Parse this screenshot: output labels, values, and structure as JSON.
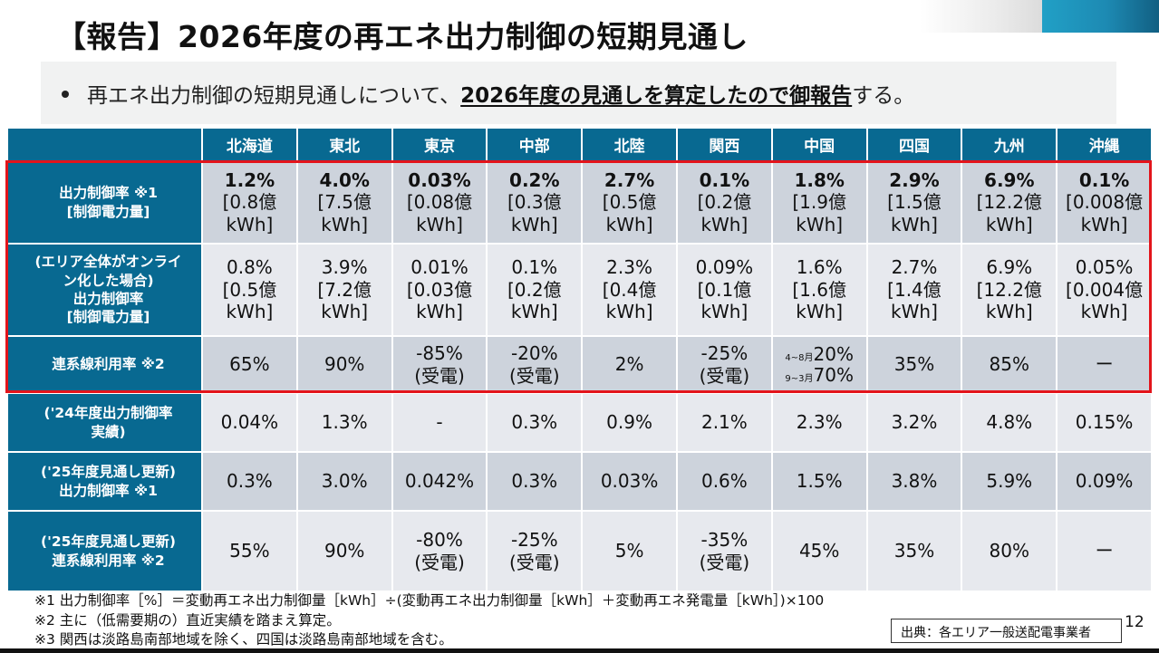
{
  "title": "【報告】2026年度の再エネ出力制御の短期見通し",
  "lead": {
    "prefix": "再エネ出力制御の短期見通しについて、",
    "emphasis": "2026年度の見通しを算定したので御報告",
    "suffix": "する。"
  },
  "table": {
    "columns": [
      "北海道",
      "東北",
      "東京",
      "中部",
      "北陸",
      "関西",
      "中国",
      "四国",
      "九州",
      "沖縄"
    ],
    "rows": [
      {
        "label_lines": [
          "出力制御率 ※1",
          "[制御電力量]"
        ],
        "cells": [
          {
            "main": "1.2%",
            "sub1": "[0.8億",
            "sub2": "kWh]"
          },
          {
            "main": "4.0%",
            "sub1": "[7.5億",
            "sub2": "kWh]"
          },
          {
            "main": "0.03%",
            "sub1": "[0.08億",
            "sub2": "kWh]"
          },
          {
            "main": "0.2%",
            "sub1": "[0.3億",
            "sub2": "kWh]"
          },
          {
            "main": "2.7%",
            "sub1": "[0.5億",
            "sub2": "kWh]"
          },
          {
            "main": "0.1%",
            "sub1": "[0.2億",
            "sub2": "kWh]"
          },
          {
            "main": "1.8%",
            "sub1": "[1.9億",
            "sub2": "kWh]"
          },
          {
            "main": "2.9%",
            "sub1": "[1.5億",
            "sub2": "kWh]"
          },
          {
            "main": "6.9%",
            "sub1": "[12.2億",
            "sub2": "kWh]"
          },
          {
            "main": "0.1%",
            "sub1": "[0.008億",
            "sub2": "kWh]"
          }
        ]
      },
      {
        "label_lines": [
          "(エリア全体がオンライ",
          "ン化した場合)",
          "出力制御率",
          "[制御電力量]"
        ],
        "cells": [
          {
            "main": "0.8%",
            "sub1": "[0.5億",
            "sub2": "kWh]"
          },
          {
            "main": "3.9%",
            "sub1": "[7.2億",
            "sub2": "kWh]"
          },
          {
            "main": "0.01%",
            "sub1": "[0.03億",
            "sub2": "kWh]"
          },
          {
            "main": "0.1%",
            "sub1": "[0.2億",
            "sub2": "kWh]"
          },
          {
            "main": "2.3%",
            "sub1": "[0.4億",
            "sub2": "kWh]"
          },
          {
            "main": "0.09%",
            "sub1": "[0.1億",
            "sub2": "kWh]"
          },
          {
            "main": "1.6%",
            "sub1": "[1.6億",
            "sub2": "kWh]"
          },
          {
            "main": "2.7%",
            "sub1": "[1.4億",
            "sub2": "kWh]"
          },
          {
            "main": "6.9%",
            "sub1": "[12.2億",
            "sub2": "kWh]"
          },
          {
            "main": "0.05%",
            "sub1": "[0.004億",
            "sub2": "kWh]"
          }
        ]
      },
      {
        "label_lines": [
          "連系線利用率 ※2"
        ],
        "cells": [
          {
            "main": "65%"
          },
          {
            "main": "90%"
          },
          {
            "main": "-85%",
            "sub1": "(受電)"
          },
          {
            "main": "-20%",
            "sub1": "(受電)"
          },
          {
            "main": "2%"
          },
          {
            "main": "-25%",
            "sub1": "(受電)"
          },
          {
            "period1": "4~8月",
            "value1": "20%",
            "period2": "9~3月",
            "value2": "70%"
          },
          {
            "main": "35%"
          },
          {
            "main": "85%"
          },
          {
            "main": "ー"
          }
        ]
      },
      {
        "label_lines": [
          "('24年度出力制御率",
          "実績)"
        ],
        "cells": [
          {
            "main": "0.04%"
          },
          {
            "main": "1.3%"
          },
          {
            "main": "-"
          },
          {
            "main": "0.3%"
          },
          {
            "main": "0.9%"
          },
          {
            "main": "2.1%"
          },
          {
            "main": "2.3%"
          },
          {
            "main": "3.2%"
          },
          {
            "main": "4.8%"
          },
          {
            "main": "0.15%"
          }
        ]
      },
      {
        "label_lines": [
          "('25年度見通し更新)",
          "出力制御率 ※1"
        ],
        "cells": [
          {
            "main": "0.3%"
          },
          {
            "main": "3.0%"
          },
          {
            "main": "0.042%"
          },
          {
            "main": "0.3%"
          },
          {
            "main": "0.03%"
          },
          {
            "main": "0.6%"
          },
          {
            "main": "1.5%"
          },
          {
            "main": "3.8%"
          },
          {
            "main": "5.9%"
          },
          {
            "main": "0.09%"
          }
        ]
      },
      {
        "label_lines": [
          "('25年度見通し更新)",
          "連系線利用率 ※2"
        ],
        "cells": [
          {
            "main": "55%"
          },
          {
            "main": "90%"
          },
          {
            "main": "-80%",
            "sub1": "(受電)"
          },
          {
            "main": "-25%",
            "sub1": "(受電)"
          },
          {
            "main": "5%"
          },
          {
            "main": "-35%",
            "sub1": "(受電)"
          },
          {
            "main": "45%"
          },
          {
            "main": "35%"
          },
          {
            "main": "80%"
          },
          {
            "main": "ー"
          }
        ]
      }
    ]
  },
  "notes": [
    "※1 出力制御率［%］＝変動再エネ出力制御量［kWh］÷(変動再エネ出力制御量［kWh］＋変動再エネ発電量［kWh］)×100",
    "※2 主に（低需要期の）直近実績を踏まえ算定。",
    "※3 関西は淡路島南部地域を除く、四国は淡路島南部地域を含む。"
  ],
  "source": "出典：各エリア一般送配電事業者",
  "page_number": "12",
  "colors": {
    "header_blue": "#086991",
    "highlight_red": "#e3141b",
    "cell_dark": "#cdd3dc",
    "cell_light": "#e7e9ee"
  }
}
